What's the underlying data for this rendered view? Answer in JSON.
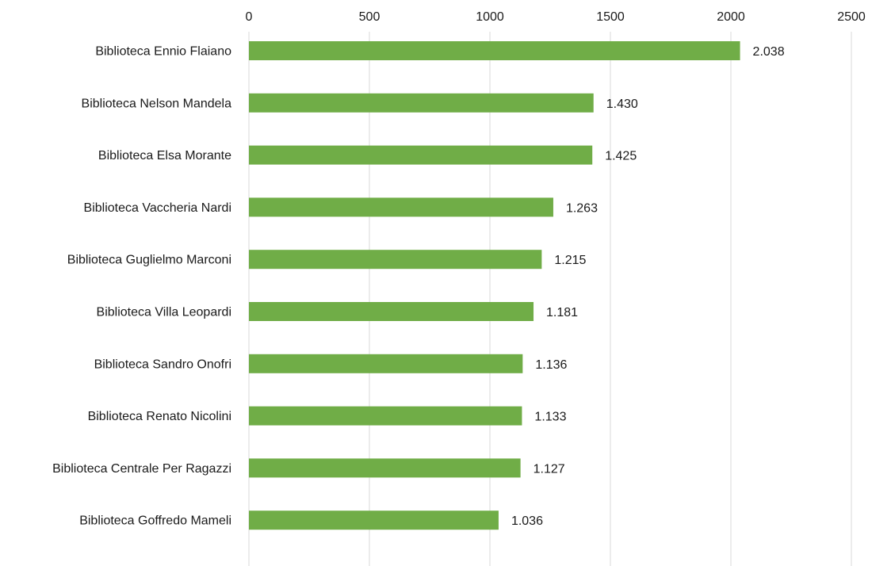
{
  "chart_data": {
    "type": "bar",
    "orientation": "horizontal",
    "title": "",
    "xlabel": "",
    "ylabel": "",
    "xlim": [
      0,
      2500
    ],
    "x_ticks": [
      0,
      500,
      1000,
      1500,
      2000,
      2500
    ],
    "x_tick_labels": [
      "0",
      "500",
      "1000",
      "1500",
      "2000",
      "2500"
    ],
    "x_axis_position": "top",
    "grid": true,
    "legend": "none",
    "bar_color": "#70ad47",
    "grid_color": "#d9d9d9",
    "categories": [
      "Biblioteca Ennio Flaiano",
      "Biblioteca Nelson Mandela",
      "Biblioteca Elsa Morante",
      "Biblioteca Vaccheria Nardi",
      "Biblioteca Guglielmo Marconi",
      "Biblioteca Villa Leopardi",
      "Biblioteca Sandro Onofri",
      "Biblioteca Renato Nicolini",
      "Biblioteca Centrale Per Ragazzi",
      "Biblioteca Goffredo Mameli"
    ],
    "values": [
      2038,
      1430,
      1425,
      1263,
      1215,
      1181,
      1136,
      1133,
      1127,
      1036
    ],
    "value_labels": [
      "2.038",
      "1.430",
      "1.425",
      "1.263",
      "1.215",
      "1.181",
      "1.136",
      "1.133",
      "1.127",
      "1.036"
    ]
  }
}
